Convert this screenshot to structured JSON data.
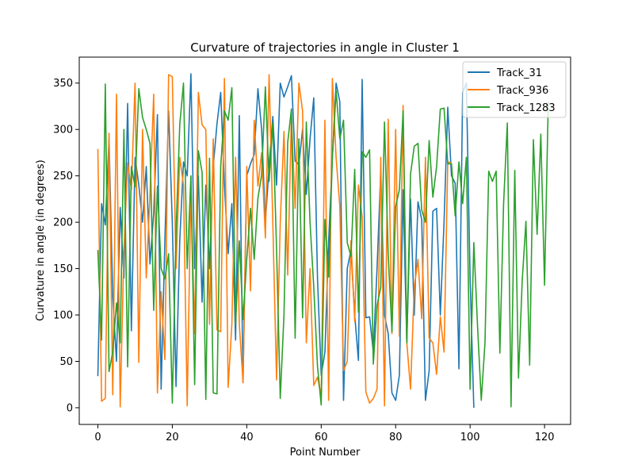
{
  "chart_data": {
    "type": "line",
    "title": "Curvature of trajectories in angle in Cluster 1",
    "xlabel": "Point Number",
    "ylabel": "Curvature in angle (in degrees)",
    "xlim": [
      -5,
      127
    ],
    "ylim": [
      -18,
      378
    ],
    "xticks": [
      0,
      20,
      40,
      60,
      80,
      100,
      120
    ],
    "yticks": [
      0,
      50,
      100,
      150,
      200,
      250,
      300,
      350
    ],
    "grid": false,
    "legend_position": "top-right",
    "series": [
      {
        "name": "Track_31",
        "color": "#1f77b4",
        "values": [
          34,
          220,
          197,
          290,
          120,
          50,
          216,
          140,
          328,
          83,
          270,
          240,
          200,
          260,
          155,
          210,
          316,
          20,
          180,
          320,
          200,
          23,
          180,
          265,
          250,
          360,
          150,
          250,
          114,
          240,
          150,
          260,
          306,
          340,
          240,
          166,
          220,
          73,
          315,
          27,
          250,
          263,
          273,
          344,
          300,
          200,
          260,
          314,
          240,
          350,
          335,
          346,
          358,
          266,
          262,
          300,
          230,
          290,
          334,
          140,
          35,
          60,
          180,
          270,
          350,
          330,
          8,
          150,
          170,
          100,
          51,
          354,
          97,
          98,
          60,
          150,
          255,
          100,
          80,
          16,
          8,
          35,
          235,
          70,
          225,
          100,
          222,
          203,
          8,
          40,
          212,
          215,
          100,
          200,
          324,
          250,
          242,
          42,
          340,
          350,
          140,
          0
        ]
      },
      {
        "name": "Track_936",
        "color": "#ff7f0e",
        "values": [
          279,
          7,
          10,
          296,
          14,
          338,
          1,
          170,
          264,
          235,
          350,
          49,
          300,
          140,
          230,
          338,
          16,
          125,
          52,
          359,
          357,
          150,
          270,
          240,
          2,
          239,
          80,
          340,
          305,
          300,
          90,
          290,
          84,
          82,
          355,
          22,
          90,
          270,
          90,
          27,
          260,
          126,
          310,
          239,
          275,
          183,
          359,
          200,
          30,
          200,
          298,
          143,
          314,
          215,
          350,
          320,
          70,
          150,
          24,
          33,
          13,
          310,
          8,
          355,
          270,
          217,
          40,
          50,
          180,
          93,
          240,
          205,
          17,
          5,
          10,
          20,
          270,
          2,
          311,
          80,
          300,
          77,
          326,
          70,
          20,
          130,
          160,
          96,
          270,
          75,
          70,
          36,
          98,
          60,
          265,
          264
        ]
      },
      {
        "name": "Track_1283",
        "color": "#2ca02c",
        "values": [
          170,
          73,
          349,
          39,
          60,
          113,
          70,
          300,
          44,
          260,
          238,
          344,
          313,
          300,
          285,
          105,
          239,
          150,
          139,
          166,
          5,
          190,
          305,
          350,
          150,
          250,
          25,
          277,
          254,
          9,
          269,
          16,
          15,
          260,
          320,
          310,
          345,
          90,
          180,
          95,
          160,
          215,
          160,
          226,
          251,
          346,
          244,
          307,
          172,
          10,
          100,
          286,
          322,
          75,
          290,
          97,
          308,
          200,
          130,
          45,
          3,
          203,
          141,
          270,
          342,
          290,
          310,
          178,
          163,
          257,
          103,
          276,
          270,
          278,
          47,
          110,
          130,
          308,
          165,
          82,
          217,
          235,
          320,
          70,
          252,
          282,
          285,
          213,
          200,
          288,
          227,
          260,
          322,
          323,
          263,
          263,
          207,
          265,
          220,
          270,
          20,
          178,
          88,
          8,
          70,
          255,
          244,
          255,
          59,
          220,
          307,
          1,
          256,
          32,
          137,
          201,
          46,
          289,
          187,
          295,
          132,
          330
        ]
      }
    ]
  }
}
